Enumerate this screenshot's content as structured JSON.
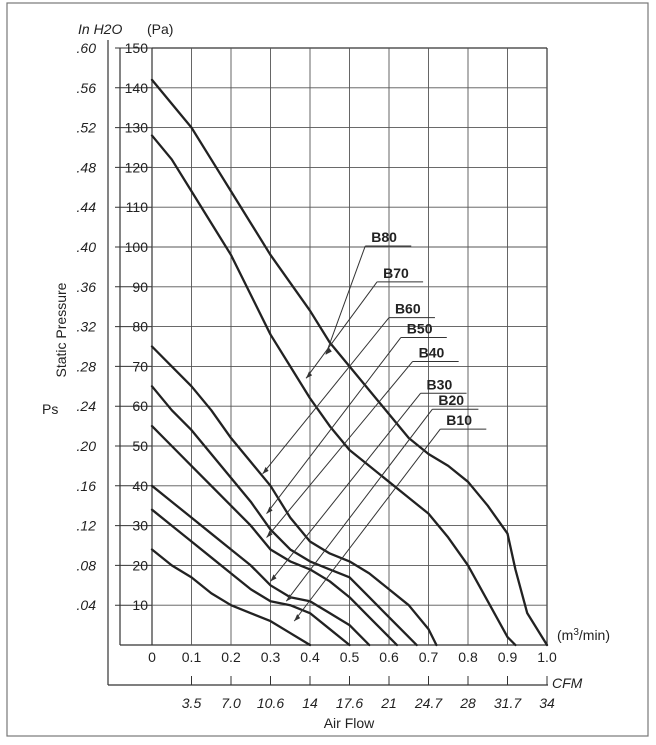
{
  "chart_data": {
    "type": "line",
    "ylabel_units_left": "In H2O",
    "ylabel_units_right": "(Pa)",
    "ylabel_rotated": "Static Pressure",
    "ylabel_symbol": "Ps",
    "xlabel": "Air Flow",
    "x_units_top": "(m3/min)",
    "x_units_bottom": "CFM",
    "xlim": [
      0,
      1.0
    ],
    "ylim": [
      0,
      150
    ],
    "grid": true,
    "pa_ticks": [
      "150",
      "140",
      "130",
      "120",
      "110",
      "100",
      "90",
      "80",
      "70",
      "60",
      "50",
      "40",
      "30",
      "20",
      "10"
    ],
    "inh2o_ticks": [
      ".60",
      ".56",
      ".52",
      ".48",
      ".44",
      ".40",
      ".36",
      ".32",
      ".28",
      ".24",
      ".20",
      ".16",
      ".12",
      ".08",
      ".04"
    ],
    "m3_ticks": [
      "0",
      "0.1",
      "0.2",
      "0.3",
      "0.4",
      "0.5",
      "0.6",
      "0.7",
      "0.8",
      "0.9",
      "1.0"
    ],
    "cfm_ticks": [
      "3.5",
      "7.0",
      "10.6",
      "14",
      "17.6",
      "21",
      "24.7",
      "28",
      "31.7",
      "34"
    ],
    "series": [
      {
        "name": "B80",
        "x": [
          0,
          0.05,
          0.1,
          0.15,
          0.2,
          0.25,
          0.3,
          0.35,
          0.4,
          0.45,
          0.5,
          0.55,
          0.6,
          0.65,
          0.7,
          0.75,
          0.8,
          0.85,
          0.9,
          0.92,
          0.95,
          1.0
        ],
        "y": [
          142,
          136,
          130,
          122,
          114,
          106,
          98,
          91,
          84,
          76,
          70,
          64,
          58,
          52,
          48,
          45,
          41,
          35,
          28,
          19,
          8,
          0
        ]
      },
      {
        "name": "B70",
        "x": [
          0,
          0.05,
          0.1,
          0.15,
          0.2,
          0.25,
          0.3,
          0.35,
          0.4,
          0.45,
          0.5,
          0.55,
          0.6,
          0.65,
          0.7,
          0.75,
          0.8,
          0.85,
          0.9,
          0.92
        ],
        "y": [
          128,
          122,
          114,
          106,
          98,
          88,
          78,
          70,
          62,
          55,
          49,
          45,
          41,
          37,
          33,
          27,
          20,
          11,
          2,
          0
        ]
      },
      {
        "name": "B60",
        "x": [
          0,
          0.05,
          0.1,
          0.15,
          0.2,
          0.25,
          0.3,
          0.35,
          0.4,
          0.45,
          0.5,
          0.55,
          0.6,
          0.65,
          0.7,
          0.72
        ],
        "y": [
          75,
          70,
          65,
          59,
          52,
          46,
          40,
          32,
          26,
          23,
          21,
          18,
          14,
          10,
          4,
          0
        ]
      },
      {
        "name": "B50",
        "x": [
          0,
          0.05,
          0.1,
          0.15,
          0.2,
          0.25,
          0.3,
          0.35,
          0.4,
          0.45,
          0.5,
          0.55,
          0.6,
          0.65,
          0.67
        ],
        "y": [
          65,
          59,
          54,
          48,
          42,
          36,
          29,
          24,
          21,
          19,
          17,
          12,
          7,
          2,
          0
        ]
      },
      {
        "name": "B40",
        "x": [
          0,
          0.05,
          0.1,
          0.15,
          0.2,
          0.25,
          0.3,
          0.35,
          0.4,
          0.45,
          0.5,
          0.55,
          0.6,
          0.62
        ],
        "y": [
          55,
          50,
          45,
          40,
          35,
          30,
          24,
          21,
          19,
          16,
          12,
          7,
          2,
          0
        ]
      },
      {
        "name": "B30",
        "x": [
          0,
          0.05,
          0.1,
          0.15,
          0.2,
          0.25,
          0.3,
          0.35,
          0.4,
          0.45,
          0.5,
          0.55
        ],
        "y": [
          40,
          36,
          32,
          28,
          24,
          20,
          15,
          12,
          11,
          8,
          5,
          0
        ]
      },
      {
        "name": "B20",
        "x": [
          0,
          0.05,
          0.1,
          0.15,
          0.2,
          0.25,
          0.3,
          0.35,
          0.4,
          0.45,
          0.5
        ],
        "y": [
          34,
          30,
          26,
          22,
          18,
          14,
          11,
          10,
          8,
          4,
          0
        ]
      },
      {
        "name": "B10",
        "x": [
          0,
          0.05,
          0.1,
          0.15,
          0.2,
          0.25,
          0.3,
          0.35,
          0.4
        ],
        "y": [
          24,
          20,
          17,
          13,
          10,
          8,
          6,
          3,
          0
        ]
      }
    ],
    "label_anchors": [
      {
        "name": "B80",
        "x": 0.55,
        "y": 101
      },
      {
        "name": "B70",
        "x": 0.58,
        "y": 92
      },
      {
        "name": "B60",
        "x": 0.61,
        "y": 83
      },
      {
        "name": "B50",
        "x": 0.64,
        "y": 78
      },
      {
        "name": "B40",
        "x": 0.67,
        "y": 72
      },
      {
        "name": "B30",
        "x": 0.69,
        "y": 64
      },
      {
        "name": "B20",
        "x": 0.72,
        "y": 60
      },
      {
        "name": "B10",
        "x": 0.74,
        "y": 55
      }
    ],
    "label_targets": [
      {
        "name": "B80",
        "x": 0.44,
        "y": 73
      },
      {
        "name": "B70",
        "x": 0.39,
        "y": 67
      },
      {
        "name": "B60",
        "x": 0.28,
        "y": 43
      },
      {
        "name": "B50",
        "x": 0.29,
        "y": 33
      },
      {
        "name": "B40",
        "x": 0.29,
        "y": 27
      },
      {
        "name": "B30",
        "x": 0.3,
        "y": 16
      },
      {
        "name": "B20",
        "x": 0.34,
        "y": 11
      },
      {
        "name": "B10",
        "x": 0.36,
        "y": 6
      }
    ]
  }
}
